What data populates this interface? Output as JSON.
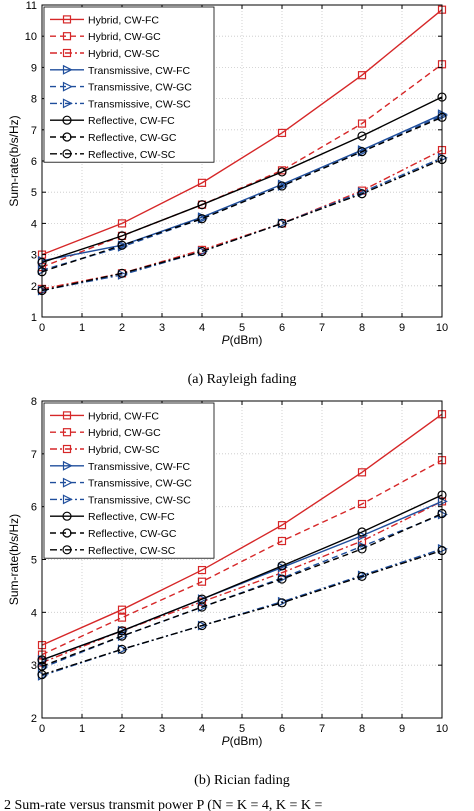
{
  "chart_data": [
    {
      "type": "line",
      "caption": "(a) Rayleigh fading",
      "xlabel_italic": "P",
      "xlabel_unit": "(dBm)",
      "ylabel": "Sum-rate(b/s/Hz)",
      "xlim": [
        0,
        10
      ],
      "ylim": [
        1,
        11
      ],
      "xticks": [
        "0",
        "1",
        "2",
        "3",
        "4",
        "5",
        "6",
        "7",
        "8",
        "9",
        "10"
      ],
      "yticks": [
        "1",
        "2",
        "3",
        "4",
        "5",
        "6",
        "7",
        "8",
        "9",
        "10",
        "11"
      ],
      "grid": true,
      "legend_position": "top-left",
      "x": [
        0,
        2,
        4,
        6,
        8,
        10
      ],
      "series": [
        {
          "name": "Hybrid, CW-FC",
          "values": [
            3.0,
            4.0,
            5.3,
            6.9,
            8.75,
            10.85
          ],
          "color": "#d62728",
          "dash": "solid",
          "marker": "square"
        },
        {
          "name": "Hybrid, CW-GC",
          "values": [
            2.6,
            3.6,
            4.6,
            5.7,
            7.2,
            9.1
          ],
          "color": "#d62728",
          "dash": "dash",
          "marker": "square"
        },
        {
          "name": "Hybrid, CW-SC",
          "values": [
            1.9,
            2.4,
            3.15,
            4.0,
            5.05,
            6.35
          ],
          "color": "#d62728",
          "dash": "dashdot",
          "marker": "square"
        },
        {
          "name": "Transmissive, CW-FC",
          "values": [
            2.8,
            3.3,
            4.2,
            5.25,
            6.35,
            7.5
          ],
          "color": "#1f4e9c",
          "dash": "solid",
          "marker": "triangle"
        },
        {
          "name": "Transmissive, CW-GC",
          "values": [
            2.5,
            3.25,
            4.15,
            5.2,
            6.3,
            7.45
          ],
          "color": "#1f4e9c",
          "dash": "dash",
          "marker": "triangle"
        },
        {
          "name": "Transmissive, CW-SC",
          "values": [
            1.85,
            2.35,
            3.1,
            4.0,
            5.0,
            6.1
          ],
          "color": "#1f4e9c",
          "dash": "dashdot",
          "marker": "triangle"
        },
        {
          "name": "Reflective, CW-FC",
          "values": [
            2.75,
            3.6,
            4.6,
            5.65,
            6.8,
            8.05
          ],
          "color": "#000000",
          "dash": "solid",
          "marker": "circle"
        },
        {
          "name": "Reflective, CW-GC",
          "values": [
            2.45,
            3.3,
            4.15,
            5.2,
            6.3,
            7.4
          ],
          "color": "#000000",
          "dash": "dash",
          "marker": "circle"
        },
        {
          "name": "Reflective, CW-SC",
          "values": [
            1.85,
            2.4,
            3.1,
            4.0,
            4.95,
            6.05
          ],
          "color": "#000000",
          "dash": "dashdot",
          "marker": "circle"
        }
      ]
    },
    {
      "type": "line",
      "caption": "(b) Rician fading",
      "xlabel_italic": "P",
      "xlabel_unit": "(dBm)",
      "ylabel": "Sum-rate(b/s/Hz)",
      "xlim": [
        0,
        10
      ],
      "ylim": [
        2,
        8
      ],
      "xticks": [
        "0",
        "1",
        "2",
        "3",
        "4",
        "5",
        "6",
        "7",
        "8",
        "9",
        "10"
      ],
      "yticks": [
        "2",
        "3",
        "4",
        "5",
        "6",
        "7",
        "8"
      ],
      "grid": true,
      "legend_position": "top-left",
      "x": [
        0,
        2,
        4,
        6,
        8,
        10
      ],
      "series": [
        {
          "name": "Hybrid, CW-FC",
          "values": [
            3.38,
            4.05,
            4.8,
            5.65,
            6.65,
            7.75
          ],
          "color": "#d62728",
          "dash": "solid",
          "marker": "square"
        },
        {
          "name": "Hybrid, CW-GC",
          "values": [
            3.2,
            3.9,
            4.58,
            5.35,
            6.05,
            6.88
          ],
          "color": "#d62728",
          "dash": "dash",
          "marker": "square"
        },
        {
          "name": "Hybrid, CW-SC",
          "values": [
            3.05,
            3.65,
            4.2,
            4.75,
            5.35,
            6.1
          ],
          "color": "#d62728",
          "dash": "dashdot",
          "marker": "square"
        },
        {
          "name": "Transmissive, CW-FC",
          "values": [
            3.1,
            3.65,
            4.25,
            4.85,
            5.45,
            6.1
          ],
          "color": "#1f4e9c",
          "dash": "solid",
          "marker": "triangle"
        },
        {
          "name": "Transmissive, CW-GC",
          "values": [
            2.95,
            3.55,
            4.1,
            4.65,
            5.25,
            5.85
          ],
          "color": "#1f4e9c",
          "dash": "dash",
          "marker": "triangle"
        },
        {
          "name": "Transmissive, CW-SC",
          "values": [
            2.8,
            3.3,
            3.75,
            4.2,
            4.7,
            5.2
          ],
          "color": "#1f4e9c",
          "dash": "dashdot",
          "marker": "triangle"
        },
        {
          "name": "Reflective, CW-FC",
          "values": [
            3.1,
            3.65,
            4.25,
            4.88,
            5.52,
            6.22
          ],
          "color": "#000000",
          "dash": "solid",
          "marker": "circle"
        },
        {
          "name": "Reflective, CW-GC",
          "values": [
            2.98,
            3.55,
            4.1,
            4.63,
            5.2,
            5.87
          ],
          "color": "#000000",
          "dash": "dash",
          "marker": "circle"
        },
        {
          "name": "Reflective, CW-SC",
          "values": [
            2.82,
            3.3,
            3.75,
            4.18,
            4.68,
            5.17
          ],
          "color": "#000000",
          "dash": "dashdot",
          "marker": "circle"
        }
      ]
    }
  ],
  "footer_caption": "2 Sum-rate versus transmit power P (N = K = 4, K = K ="
}
